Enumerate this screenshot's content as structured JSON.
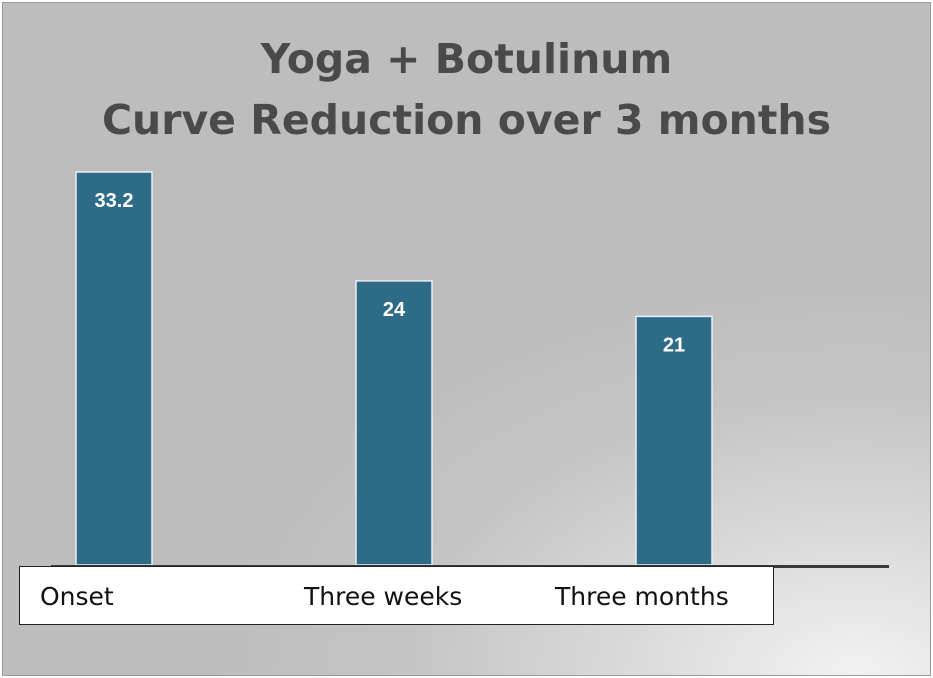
{
  "chart_data": {
    "type": "bar",
    "title_lines": [
      "Yoga + Botulinum",
      "Curve Reduction over 3 months"
    ],
    "categories": [
      "Onset",
      "Three weeks",
      "Three months"
    ],
    "values": [
      33.2,
      24,
      21
    ],
    "data_labels": [
      "33.2",
      "24",
      "21"
    ],
    "xlabel": "",
    "ylabel": "",
    "ylim": [
      0,
      33.2
    ],
    "grid": false,
    "legend": "none",
    "colors": {
      "bar": "#2e6b87",
      "bar_edge": "#e8eef2",
      "data_label": "#ffffff",
      "title": "#4a4a4a",
      "axis": "#3a3a3a"
    }
  }
}
